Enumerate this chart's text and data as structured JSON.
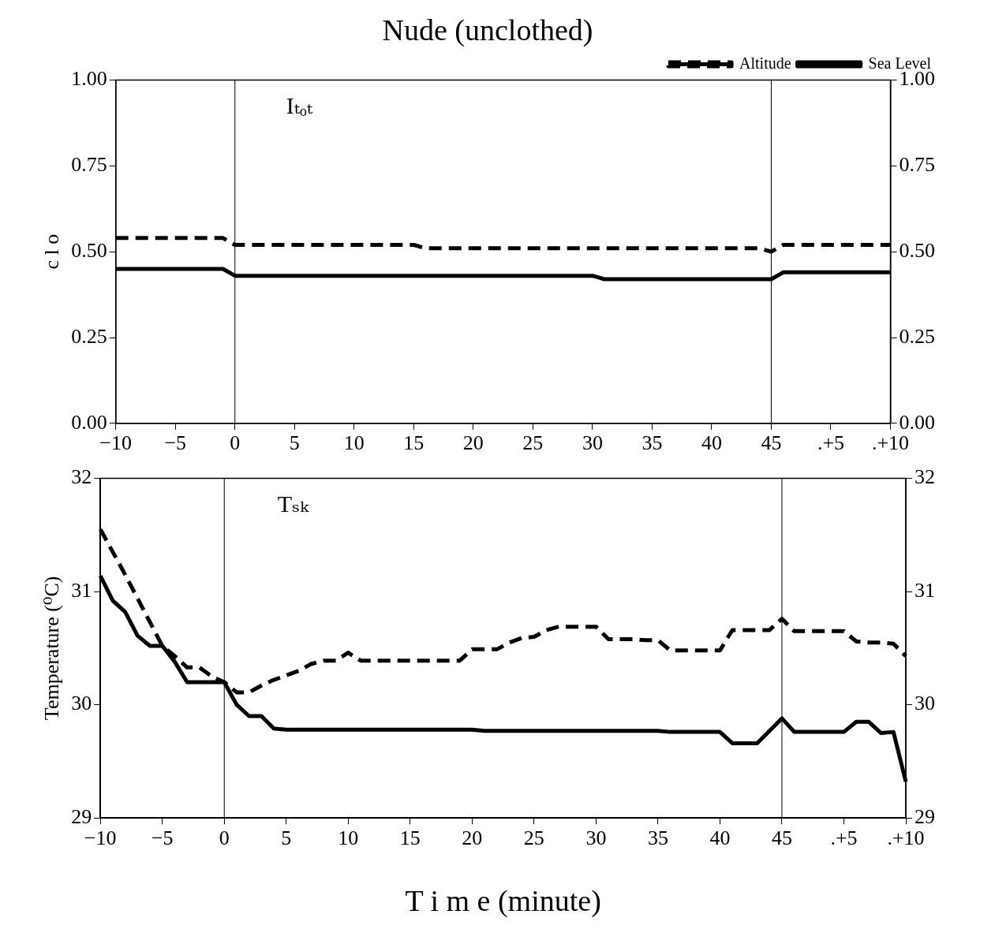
{
  "chart_data": [
    {
      "type": "line",
      "title": "Nude (unclothed)",
      "ylabel": "c l o",
      "annotations": [
        "Iₜₒₜ"
      ],
      "legend": "top right",
      "grid": false,
      "categories": [
        "−10",
        null,
        null,
        null,
        null,
        "−5",
        null,
        null,
        null,
        null,
        "0",
        null,
        null,
        null,
        null,
        "5",
        null,
        null,
        null,
        null,
        "10",
        null,
        null,
        null,
        null,
        "15",
        null,
        null,
        null,
        null,
        "20",
        null,
        null,
        null,
        null,
        "25",
        null,
        null,
        null,
        null,
        "30",
        null,
        null,
        null,
        null,
        "35",
        null,
        null,
        null,
        null,
        "40",
        null,
        null,
        null,
        null,
        "45",
        null,
        null,
        null,
        null,
        ".+5",
        null,
        null,
        null,
        null,
        ".+10"
      ],
      "ylim": [
        0,
        1
      ],
      "yticks": [
        {
          "value": 0,
          "label": "0.00"
        },
        {
          "value": 0.25,
          "label": "0.25"
        },
        {
          "value": 0.5,
          "label": "0.50"
        },
        {
          "value": 0.75,
          "label": "0.75"
        },
        {
          "value": 1,
          "label": "1.00"
        }
      ],
      "y2lim": [
        0,
        1
      ],
      "y2ticks": [
        {
          "value": 0,
          "label": "0.00"
        },
        {
          "value": 0.25,
          "label": "0.25"
        },
        {
          "value": 0.5,
          "label": "0.50"
        },
        {
          "value": 0.75,
          "label": "0.75"
        },
        {
          "value": 1,
          "label": "1.00"
        }
      ],
      "ref_lines": [
        {
          "axis": "x",
          "value": "0"
        },
        {
          "axis": "x",
          "value": "45"
        }
      ],
      "series": [
        {
          "name": "Altitude",
          "color": "#000000",
          "line_style": "dashed",
          "values": [
            0.54,
            0.54,
            0.54,
            0.54,
            0.54,
            0.54,
            0.54,
            0.54,
            0.54,
            0.54,
            0.52,
            0.52,
            0.52,
            0.52,
            0.52,
            0.52,
            0.52,
            0.52,
            0.52,
            0.52,
            0.52,
            0.52,
            0.52,
            0.52,
            0.52,
            0.52,
            0.51,
            0.51,
            0.51,
            0.51,
            0.51,
            0.51,
            0.51,
            0.51,
            0.51,
            0.51,
            0.51,
            0.51,
            0.51,
            0.51,
            0.51,
            0.51,
            0.51,
            0.51,
            0.51,
            0.51,
            0.51,
            0.51,
            0.51,
            0.51,
            0.51,
            0.51,
            0.51,
            0.51,
            0.51,
            0.5,
            0.52,
            0.52,
            0.52,
            0.52,
            0.52,
            0.52,
            0.52,
            0.52,
            0.52,
            0.52
          ]
        },
        {
          "name": "Sea Level",
          "color": "#000000",
          "line_style": "solid",
          "values": [
            0.45,
            0.45,
            0.45,
            0.45,
            0.45,
            0.45,
            0.45,
            0.45,
            0.45,
            0.45,
            0.43,
            0.43,
            0.43,
            0.43,
            0.43,
            0.43,
            0.43,
            0.43,
            0.43,
            0.43,
            0.43,
            0.43,
            0.43,
            0.43,
            0.43,
            0.43,
            0.43,
            0.43,
            0.43,
            0.43,
            0.43,
            0.43,
            0.43,
            0.43,
            0.43,
            0.43,
            0.43,
            0.43,
            0.43,
            0.43,
            0.43,
            0.42,
            0.42,
            0.42,
            0.42,
            0.42,
            0.42,
            0.42,
            0.42,
            0.42,
            0.42,
            0.42,
            0.42,
            0.42,
            0.42,
            0.42,
            0.44,
            0.44,
            0.44,
            0.44,
            0.44,
            0.44,
            0.44,
            0.44,
            0.44,
            0.44
          ]
        }
      ]
    },
    {
      "type": "line",
      "ylabel": "Temperature (⁰C)",
      "xlabel": "T i m e (minute)",
      "annotations": [
        "Tₛₖ"
      ],
      "grid": false,
      "categories": [
        "−10",
        null,
        null,
        null,
        null,
        "−5",
        null,
        null,
        null,
        null,
        "0",
        null,
        null,
        null,
        null,
        "5",
        null,
        null,
        null,
        null,
        "10",
        null,
        null,
        null,
        null,
        "15",
        null,
        null,
        null,
        null,
        "20",
        null,
        null,
        null,
        null,
        "25",
        null,
        null,
        null,
        null,
        "30",
        null,
        null,
        null,
        null,
        "35",
        null,
        null,
        null,
        null,
        "40",
        null,
        null,
        null,
        null,
        "45",
        null,
        null,
        null,
        null,
        ".+5",
        null,
        null,
        null,
        null,
        ".+10"
      ],
      "ylim": [
        29,
        32
      ],
      "yticks": [
        29,
        30,
        31,
        32
      ],
      "y2lim": [
        29,
        32
      ],
      "y2ticks": [
        29,
        30,
        31,
        32
      ],
      "ref_lines": [
        {
          "axis": "x",
          "value": "0"
        },
        {
          "axis": "x",
          "value": "45"
        }
      ],
      "series": [
        {
          "color": "#000000",
          "line_style": "dashed",
          "values": [
            31.55,
            31.35,
            31.15,
            30.94,
            30.73,
            30.52,
            30.43,
            30.33,
            30.33,
            30.25,
            30.2,
            30.11,
            30.11,
            30.17,
            30.22,
            30.26,
            30.3,
            30.36,
            30.39,
            30.39,
            30.46,
            30.39,
            30.39,
            30.39,
            30.39,
            30.39,
            30.39,
            30.39,
            30.39,
            30.39,
            30.49,
            30.49,
            30.49,
            30.55,
            30.59,
            30.6,
            30.66,
            30.69,
            30.69,
            30.69,
            30.69,
            30.58,
            30.58,
            30.58,
            30.57,
            30.57,
            30.48,
            30.48,
            30.48,
            30.48,
            30.48,
            30.66,
            30.66,
            30.66,
            30.66,
            30.76,
            30.65,
            30.65,
            30.65,
            30.65,
            30.65,
            30.56,
            30.55,
            30.55,
            30.54,
            30.43
          ]
        },
        {
          "color": "#000000",
          "line_style": "solid",
          "values": [
            31.14,
            30.92,
            30.82,
            30.61,
            30.52,
            30.52,
            30.38,
            30.2,
            30.2,
            30.2,
            30.2,
            30.0,
            29.9,
            29.9,
            29.79,
            29.78,
            29.78,
            29.78,
            29.78,
            29.78,
            29.78,
            29.78,
            29.78,
            29.78,
            29.78,
            29.78,
            29.78,
            29.78,
            29.78,
            29.78,
            29.78,
            29.77,
            29.77,
            29.77,
            29.77,
            29.77,
            29.77,
            29.77,
            29.77,
            29.77,
            29.77,
            29.77,
            29.77,
            29.77,
            29.77,
            29.77,
            29.76,
            29.76,
            29.76,
            29.76,
            29.76,
            29.66,
            29.66,
            29.66,
            29.77,
            29.88,
            29.76,
            29.76,
            29.76,
            29.76,
            29.76,
            29.85,
            29.85,
            29.75,
            29.76,
            29.32
          ]
        }
      ]
    }
  ]
}
